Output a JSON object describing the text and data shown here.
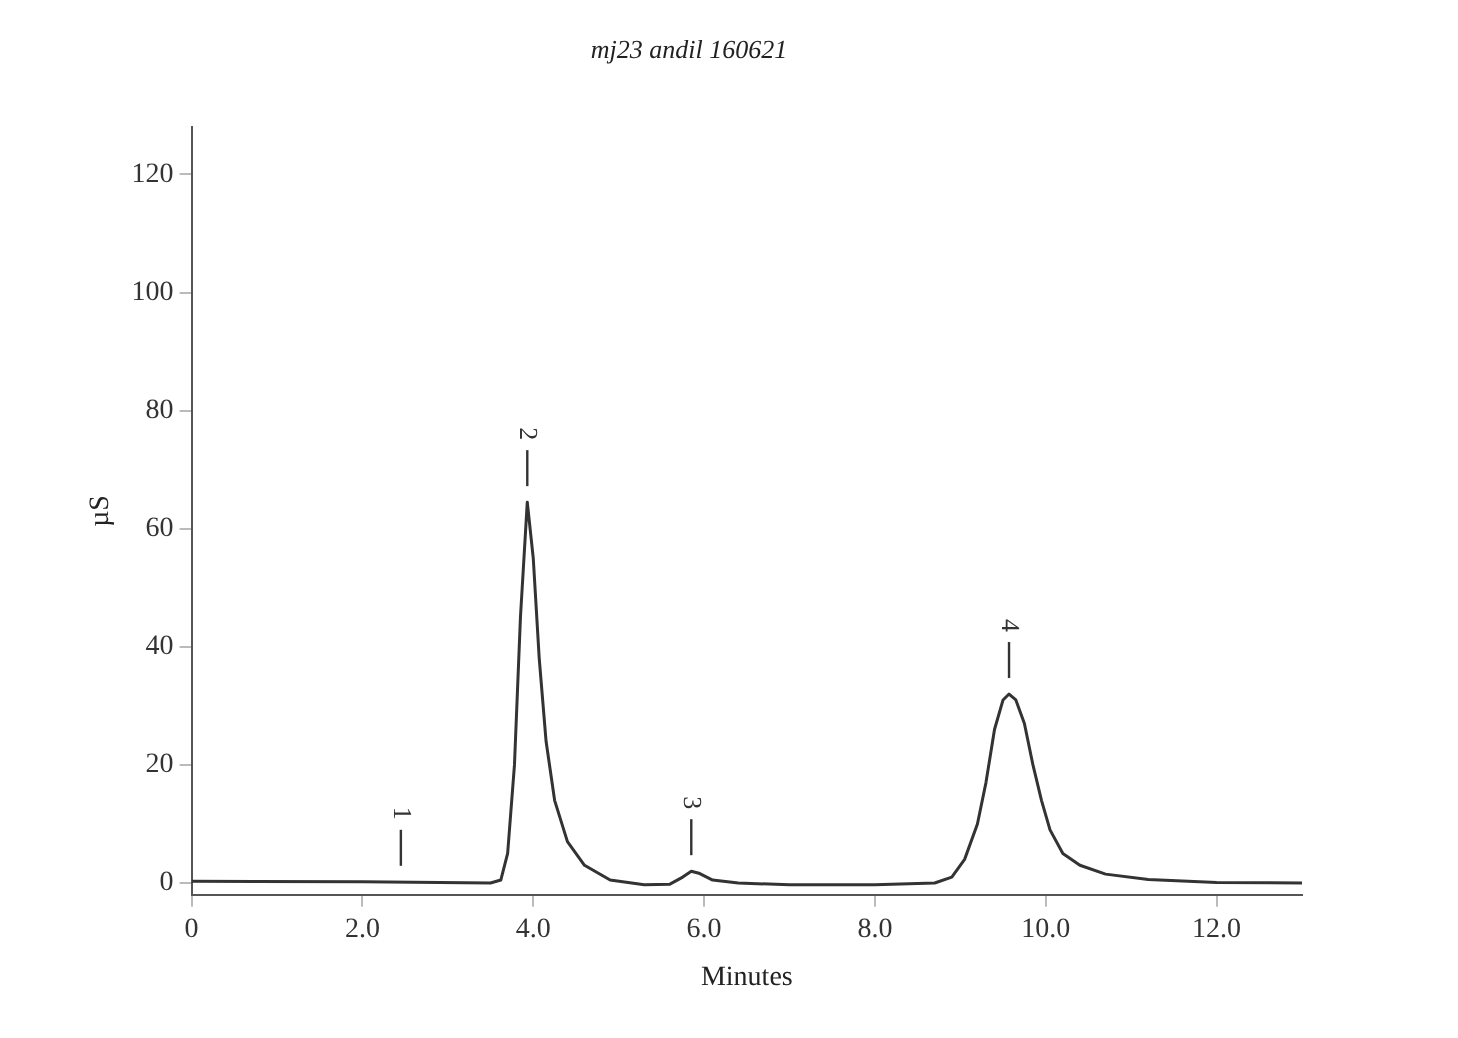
{
  "chart_data": {
    "type": "line",
    "title": "mj23 andil 160621",
    "xlabel": "Minutes",
    "ylabel": "µS",
    "xlim": [
      0,
      13
    ],
    "xticks": [
      0,
      {
        "value": 2,
        "label": "2.0"
      },
      {
        "value": 4,
        "label": "4.0"
      },
      {
        "value": 6,
        "label": "6.0"
      },
      {
        "value": 8,
        "label": "8.0"
      },
      {
        "value": 10,
        "label": "10.0"
      },
      {
        "value": 12,
        "label": "12.0"
      }
    ],
    "ylim": [
      -2,
      128
    ],
    "yticks": [
      0,
      20,
      40,
      60,
      80,
      100,
      120
    ],
    "grid": false,
    "legend": false,
    "marker": "none",
    "line_style": "solid",
    "series": [
      {
        "color": "#333333",
        "x": [
          0,
          2,
          3.5,
          3.62,
          3.7,
          3.78,
          3.85,
          3.93,
          4.0,
          4.07,
          4.15,
          4.25,
          4.4,
          4.6,
          4.9,
          5.3,
          5.6,
          5.75,
          5.85,
          5.95,
          6.1,
          6.4,
          7,
          8,
          8.7,
          8.9,
          9.05,
          9.2,
          9.3,
          9.4,
          9.5,
          9.57,
          9.65,
          9.75,
          9.85,
          9.95,
          10.05,
          10.2,
          10.4,
          10.7,
          11.2,
          12,
          13
        ],
        "values": [
          0.3,
          0.2,
          0,
          0.5,
          5,
          20,
          45,
          64.5,
          55,
          38,
          24,
          14,
          7,
          3,
          0.5,
          -0.3,
          -0.2,
          1,
          2,
          1.6,
          0.5,
          0,
          -0.3,
          -0.3,
          0,
          1,
          4,
          10,
          17,
          26,
          31,
          32,
          31,
          27,
          20,
          14,
          9,
          5,
          3,
          1.5,
          0.6,
          0.1,
          0
        ]
      }
    ],
    "annotations": [
      {
        "text": "1",
        "x": 2.45,
        "y": 0.2
      },
      {
        "text": "2",
        "x": 3.93,
        "y": 64.5
      },
      {
        "text": "3",
        "x": 5.85,
        "y": 2
      },
      {
        "text": "4",
        "x": 9.57,
        "y": 32
      }
    ]
  }
}
